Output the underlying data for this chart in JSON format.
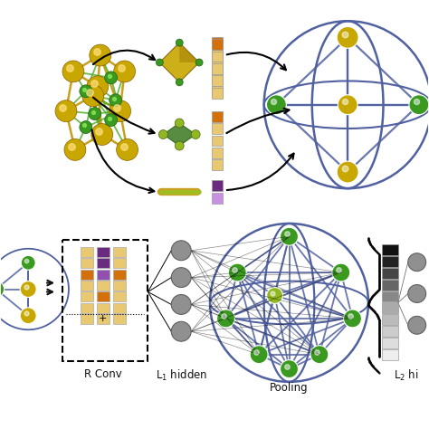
{
  "bg_color": "#ffffff",
  "node_gold": "#c8a800",
  "node_green": "#3a9a20",
  "node_yellow_green": "#90b820",
  "node_gray": "#808080",
  "edge_color": "#5060a0",
  "arrow_color": "#111111",
  "text_color": "#111111",
  "gold_bond": "#c8a020",
  "green_bond": "#4aaa20",
  "tan": "#e8c870",
  "orange": "#d4700a",
  "purple_dark": "#6a2a80",
  "purple_mid": "#9050b0",
  "purple_light": "#c890e0",
  "labels": {
    "r_conv": "R Conv",
    "l1_hidden": "L$_1$ hidden",
    "pooling": "Pooling",
    "l2_hi": "L$_2$ hi"
  },
  "label_fontsize": 8.5
}
